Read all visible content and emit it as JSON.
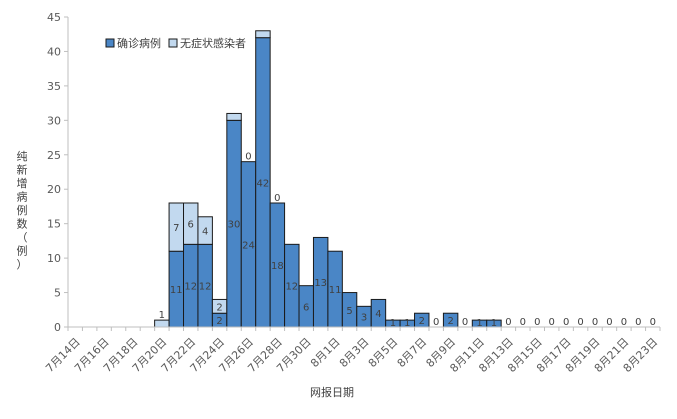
{
  "chart_data": {
    "type": "bar",
    "stacked": true,
    "categories": [
      "7月14日",
      "7月15日",
      "7月16日",
      "7月17日",
      "7月18日",
      "7月19日",
      "7月20日",
      "7月21日",
      "7月22日",
      "7月23日",
      "7月24日",
      "7月25日",
      "7月26日",
      "7月27日",
      "7月28日",
      "7月29日",
      "7月30日",
      "7月31日",
      "8月1日",
      "8月2日",
      "8月3日",
      "8月4日",
      "8月5日",
      "8月6日",
      "8月7日",
      "8月8日",
      "8月9日",
      "8月10日",
      "8月11日",
      "8月12日",
      "8月13日",
      "8月14日",
      "8月15日",
      "8月16日",
      "8月17日",
      "8月18日",
      "8月19日",
      "8月20日",
      "8月21日",
      "8月22日",
      "8月23日"
    ],
    "x_tick_labels": [
      "7月14日",
      "7月16日",
      "7月18日",
      "7月20日",
      "7月22日",
      "7月24日",
      "7月26日",
      "7月28日",
      "7月30日",
      "8月1日",
      "8月3日",
      "8月5日",
      "8月7日",
      "8月9日",
      "8月11日",
      "8月13日",
      "8月15日",
      "8月17日",
      "8月19日",
      "8月21日",
      "8月23日"
    ],
    "series": [
      {
        "name": "确诊病例",
        "color": "#4a86c6",
        "values": [
          0,
          0,
          0,
          0,
          0,
          0,
          0,
          11,
          12,
          12,
          2,
          30,
          24,
          42,
          18,
          12,
          6,
          13,
          11,
          5,
          3,
          4,
          1,
          1,
          2,
          0,
          2,
          0,
          1,
          1,
          0,
          0,
          0,
          0,
          0,
          0,
          0,
          0,
          0,
          0,
          0
        ]
      },
      {
        "name": "无症状感染者",
        "color": "#c2d9ef",
        "values": [
          0,
          0,
          0,
          0,
          0,
          0,
          1,
          7,
          6,
          4,
          2,
          1,
          0,
          1,
          0,
          0,
          0,
          0,
          0,
          0,
          0,
          0,
          0,
          0,
          0,
          0,
          0,
          0,
          0,
          0,
          0,
          0,
          0,
          0,
          0,
          0,
          0,
          0,
          0,
          0,
          0
        ]
      }
    ],
    "data_labels": [
      {
        "i": 6,
        "text": "1",
        "anchor": "top"
      },
      {
        "i": 7,
        "text": "11",
        "anchor": "confirmed"
      },
      {
        "i": 7,
        "text": "7",
        "anchor": "asymptomatic"
      },
      {
        "i": 8,
        "text": "12",
        "anchor": "confirmed"
      },
      {
        "i": 8,
        "text": "6",
        "anchor": "asymptomatic"
      },
      {
        "i": 9,
        "text": "12",
        "anchor": "confirmed"
      },
      {
        "i": 9,
        "text": "4",
        "anchor": "asymptomatic"
      },
      {
        "i": 10,
        "text": "2",
        "anchor": "confirmed"
      },
      {
        "i": 10,
        "text": "2",
        "anchor": "asymptomatic"
      },
      {
        "i": 11,
        "text": "30",
        "anchor": "confirmed"
      },
      {
        "i": 12,
        "text": "24",
        "anchor": "confirmed"
      },
      {
        "i": 12,
        "text": "0",
        "anchor": "top"
      },
      {
        "i": 13,
        "text": "42",
        "anchor": "confirmed"
      },
      {
        "i": 14,
        "text": "18",
        "anchor": "confirmed"
      },
      {
        "i": 14,
        "text": "0",
        "anchor": "top"
      },
      {
        "i": 15,
        "text": "12",
        "anchor": "confirmed"
      },
      {
        "i": 16,
        "text": "6",
        "anchor": "confirmed"
      },
      {
        "i": 17,
        "text": "13",
        "anchor": "confirmed"
      },
      {
        "i": 18,
        "text": "11",
        "anchor": "confirmed"
      },
      {
        "i": 19,
        "text": "5",
        "anchor": "confirmed"
      },
      {
        "i": 20,
        "text": "3",
        "anchor": "confirmed"
      },
      {
        "i": 21,
        "text": "4",
        "anchor": "confirmed"
      },
      {
        "i": 22,
        "text": "1",
        "anchor": "confirmed"
      },
      {
        "i": 23,
        "text": "1",
        "anchor": "confirmed"
      },
      {
        "i": 24,
        "text": "2",
        "anchor": "confirmed"
      },
      {
        "i": 25,
        "text": "0",
        "anchor": "top"
      },
      {
        "i": 26,
        "text": "2",
        "anchor": "confirmed"
      },
      {
        "i": 27,
        "text": "0",
        "anchor": "top"
      },
      {
        "i": 28,
        "text": "1",
        "anchor": "confirmed"
      },
      {
        "i": 29,
        "text": "1",
        "anchor": "confirmed"
      },
      {
        "i": 30,
        "text": "0",
        "anchor": "top"
      },
      {
        "i": 31,
        "text": "0",
        "anchor": "top"
      },
      {
        "i": 32,
        "text": "0",
        "anchor": "top"
      },
      {
        "i": 33,
        "text": "0",
        "anchor": "top"
      },
      {
        "i": 34,
        "text": "0",
        "anchor": "top"
      },
      {
        "i": 35,
        "text": "0",
        "anchor": "top"
      },
      {
        "i": 36,
        "text": "0",
        "anchor": "top"
      },
      {
        "i": 37,
        "text": "0",
        "anchor": "top"
      },
      {
        "i": 38,
        "text": "0",
        "anchor": "top"
      },
      {
        "i": 39,
        "text": "0",
        "anchor": "top"
      },
      {
        "i": 40,
        "text": "0",
        "anchor": "top"
      }
    ],
    "ylim": [
      0,
      45
    ],
    "yticks": [
      0,
      5,
      10,
      15,
      20,
      25,
      30,
      35,
      40,
      45
    ],
    "ylabel": "纯新增病例数（例）",
    "xlabel": "网报日期",
    "legend_position": "top-left",
    "grid": false
  }
}
